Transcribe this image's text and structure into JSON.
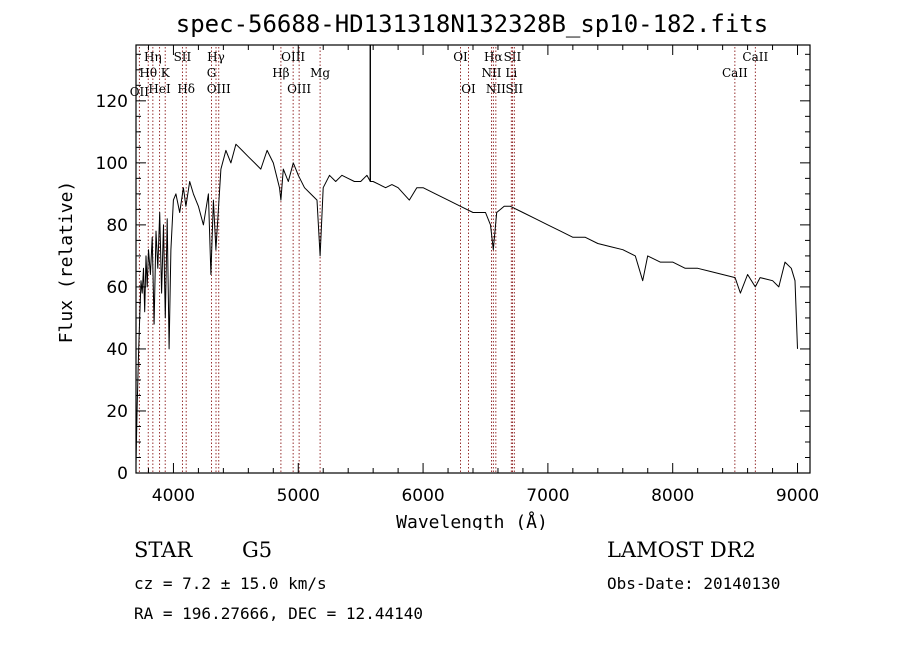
{
  "chart_data": {
    "type": "line",
    "title": "spec-56688-HD131318N132328B_sp10-182.fits",
    "xlabel": "Wavelength (Å)",
    "ylabel": "Flux (relative)",
    "xlim": [
      3700,
      9100
    ],
    "ylim": [
      0,
      138
    ],
    "xticks": [
      4000,
      5000,
      6000,
      7000,
      8000,
      9000
    ],
    "yticks": [
      0,
      20,
      40,
      60,
      80,
      100,
      120
    ],
    "x_tick_labels": [
      "4000",
      "5000",
      "6000",
      "7000",
      "8000",
      "9000"
    ],
    "y_tick_labels": [
      "0",
      "20",
      "40",
      "60",
      "80",
      "100",
      "120"
    ],
    "grid": false,
    "line_color": "#000000",
    "marker_color": "#8b1a1a",
    "series": [
      {
        "x": [
          3700,
          3710,
          3720,
          3730,
          3740,
          3750,
          3760,
          3770,
          3780,
          3790,
          3800,
          3815,
          3830,
          3845,
          3860,
          3875,
          3890,
          3905,
          3920,
          3935,
          3950,
          3965,
          3980,
          4000,
          4020,
          4050,
          4080,
          4100,
          4130,
          4160,
          4200,
          4240,
          4280,
          4300,
          4320,
          4340,
          4380,
          4420,
          4460,
          4500,
          4550,
          4600,
          4650,
          4700,
          4750,
          4800,
          4850,
          4861,
          4880,
          4920,
          4960,
          5000,
          5050,
          5100,
          5150,
          5175,
          5200,
          5250,
          5300,
          5350,
          5400,
          5450,
          5500,
          5550,
          5577,
          5600,
          5650,
          5700,
          5750,
          5800,
          5890,
          5950,
          6000,
          6100,
          6200,
          6300,
          6400,
          6500,
          6540,
          6563,
          6590,
          6650,
          6700,
          6800,
          6900,
          7000,
          7100,
          7200,
          7300,
          7400,
          7500,
          7600,
          7700,
          7760,
          7800,
          7900,
          8000,
          8100,
          8200,
          8300,
          8400,
          8500,
          8542,
          8600,
          8662,
          8700,
          8800,
          8850,
          8900,
          8950,
          8980,
          9000
        ],
        "y": [
          3,
          22,
          38,
          50,
          62,
          58,
          66,
          52,
          70,
          60,
          72,
          64,
          76,
          48,
          78,
          66,
          84,
          58,
          80,
          50,
          82,
          40,
          72,
          88,
          90,
          84,
          92,
          86,
          94,
          90,
          86,
          80,
          90,
          64,
          88,
          72,
          98,
          104,
          100,
          106,
          104,
          102,
          100,
          98,
          104,
          100,
          92,
          88,
          98,
          94,
          100,
          96,
          92,
          90,
          88,
          70,
          92,
          96,
          94,
          96,
          95,
          94,
          94,
          96,
          94,
          94,
          93,
          92,
          93,
          92,
          88,
          92,
          92,
          90,
          88,
          86,
          84,
          84,
          80,
          72,
          84,
          86,
          86,
          84,
          82,
          80,
          78,
          76,
          76,
          74,
          73,
          72,
          70,
          62,
          70,
          68,
          68,
          66,
          66,
          65,
          64,
          63,
          58,
          64,
          60,
          63,
          62,
          60,
          68,
          66,
          62,
          40
        ]
      }
    ],
    "sky_spike": {
      "x": 5577,
      "y": 138
    },
    "line_markers": [
      {
        "x": 3727,
        "row": 3,
        "label": "OII"
      },
      {
        "x": 3798,
        "row": 1,
        "label": "Hθ"
      },
      {
        "x": 3835,
        "row": 0,
        "label": "Hη"
      },
      {
        "x": 3889,
        "row": 2,
        "label": "HeI"
      },
      {
        "x": 3934,
        "row": 1,
        "label": "K"
      },
      {
        "x": 4072,
        "row": 0,
        "label": "SII"
      },
      {
        "x": 4102,
        "row": 2,
        "label": "Hδ"
      },
      {
        "x": 4305,
        "row": 1,
        "label": "G"
      },
      {
        "x": 4341,
        "row": 0,
        "label": "Hγ"
      },
      {
        "x": 4363,
        "row": 2,
        "label": "OIII"
      },
      {
        "x": 4861,
        "row": 1,
        "label": "Hβ"
      },
      {
        "x": 4959,
        "row": 0,
        "label": "OIII"
      },
      {
        "x": 5007,
        "row": 2,
        "label": "OIII"
      },
      {
        "x": 5175,
        "row": 1,
        "label": "Mg"
      },
      {
        "x": 6300,
        "row": 0,
        "label": "OI"
      },
      {
        "x": 6364,
        "row": 2,
        "label": "OI"
      },
      {
        "x": 6548,
        "row": 1,
        "label": "NII"
      },
      {
        "x": 6563,
        "row": 0,
        "label": "Hα"
      },
      {
        "x": 6583,
        "row": 2,
        "label": "NII"
      },
      {
        "x": 6707,
        "row": 1,
        "label": "Li"
      },
      {
        "x": 6716,
        "row": 0,
        "label": "SII"
      },
      {
        "x": 6731,
        "row": 2,
        "label": "SII"
      },
      {
        "x": 8498,
        "row": 1,
        "label": "CaII"
      },
      {
        "x": 8662,
        "row": 0,
        "label": "CaII"
      }
    ]
  },
  "info": {
    "class": "STAR",
    "subclass": "G5",
    "survey": "LAMOST DR2",
    "cz": "cz = 7.2 ± 15.0 km/s",
    "obs_date": "Obs-Date: 20140130",
    "coords": "RA = 196.27666, DEC =  12.44140"
  }
}
